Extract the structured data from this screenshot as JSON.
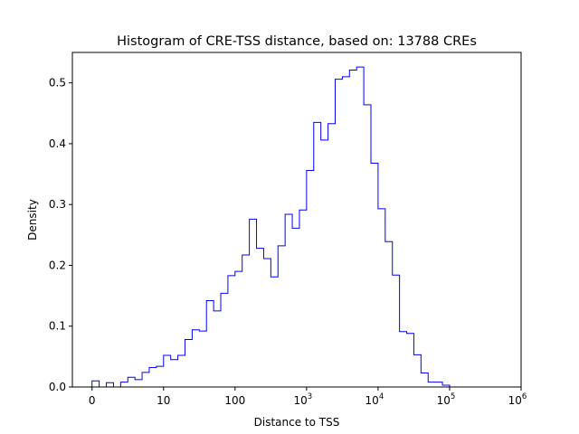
{
  "chart_data": {
    "type": "histogram",
    "title": "Histogram of CRE-TSS distance, based on: 13788 CREs",
    "xlabel": "Distance to TSS",
    "ylabel": "Density",
    "x_scale": "log10(1 + distance)",
    "xlim": [
      -0.275,
      6.0
    ],
    "ylim": [
      0,
      0.55
    ],
    "grid": false,
    "line_color": "#0000ff",
    "bin_width": 0.1,
    "bin_start": 0.0,
    "density": [
      0.01,
      0.0,
      0.007,
      0.0,
      0.008,
      0.016,
      0.012,
      0.024,
      0.032,
      0.034,
      0.052,
      0.045,
      0.052,
      0.078,
      0.094,
      0.092,
      0.142,
      0.125,
      0.154,
      0.183,
      0.19,
      0.217,
      0.276,
      0.228,
      0.211,
      0.181,
      0.232,
      0.284,
      0.261,
      0.291,
      0.356,
      0.435,
      0.406,
      0.433,
      0.506,
      0.51,
      0.521,
      0.526,
      0.464,
      0.368,
      0.293,
      0.239,
      0.184,
      0.091,
      0.088,
      0.053,
      0.023,
      0.008,
      0.008,
      0.003
    ],
    "x_ticks": [
      {
        "value": 0,
        "base": "0",
        "exp": ""
      },
      {
        "value": 1,
        "base": "10",
        "exp": ""
      },
      {
        "value": 2,
        "base": "100",
        "exp": ""
      },
      {
        "value": 3,
        "base": "10",
        "exp": "3"
      },
      {
        "value": 4,
        "base": "10",
        "exp": "4"
      },
      {
        "value": 5,
        "base": "10",
        "exp": "5"
      },
      {
        "value": 6,
        "base": "10",
        "exp": "6"
      }
    ],
    "y_ticks": [
      {
        "value": 0.0,
        "label": "0.0"
      },
      {
        "value": 0.1,
        "label": "0.1"
      },
      {
        "value": 0.2,
        "label": "0.2"
      },
      {
        "value": 0.3,
        "label": "0.3"
      },
      {
        "value": 0.4,
        "label": "0.4"
      },
      {
        "value": 0.5,
        "label": "0.5"
      }
    ]
  }
}
